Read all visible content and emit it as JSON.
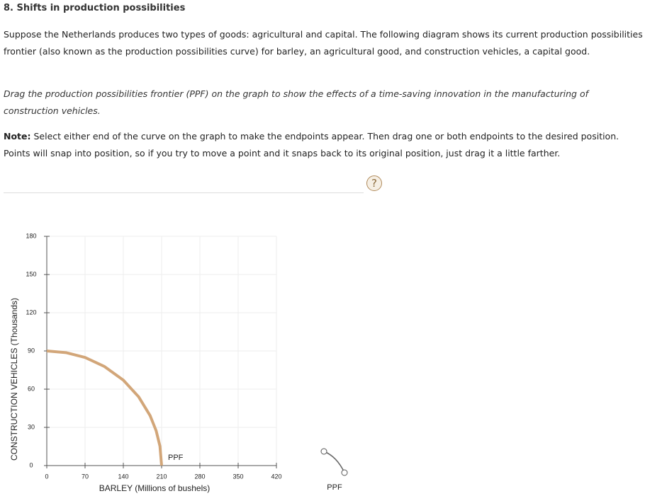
{
  "header": {
    "title": "8. Shifts in production possibilities"
  },
  "intro": "Suppose the Netherlands produces two types of goods: agricultural and capital. The following diagram shows its current production possibilities frontier (also known as the production possibilities curve) for barley, an agricultural good, and construction vehicles, a capital good.",
  "instruction": "Drag the production possibilities frontier (PPF) on the graph to show the effects of a time-saving innovation in the manufacturing of construction vehicles.",
  "note": {
    "label": "Note:",
    "text": " Select either end of the curve on the graph to make the endpoints appear. Then drag one or both endpoints to the desired position. Points will snap into position, so if you try to move a point and it snaps back to its original position, just drag it a little farther."
  },
  "help_icon": "?",
  "palette": {
    "tool_label": "PPF"
  },
  "chart_data": {
    "type": "line",
    "x_label": "BARLEY (Millions of bushels)",
    "y_label": "CONSTRUCTION VEHICLES (Thousands)",
    "x": [
      0,
      35,
      70,
      105,
      140,
      168,
      189,
      200,
      207,
      210
    ],
    "series": [
      {
        "name": "PPF",
        "color": "#d2a679",
        "values": [
          90,
          88.7,
          84.9,
          77.9,
          67.1,
          54,
          39.2,
          27.4,
          15.2,
          0
        ]
      }
    ],
    "xlim": [
      0,
      420
    ],
    "xticks": [
      0,
      70,
      140,
      210,
      280,
      350,
      420
    ],
    "ylim": [
      0,
      180
    ],
    "yticks": [
      0,
      30,
      60,
      90,
      120,
      150,
      180
    ],
    "grid": true
  }
}
